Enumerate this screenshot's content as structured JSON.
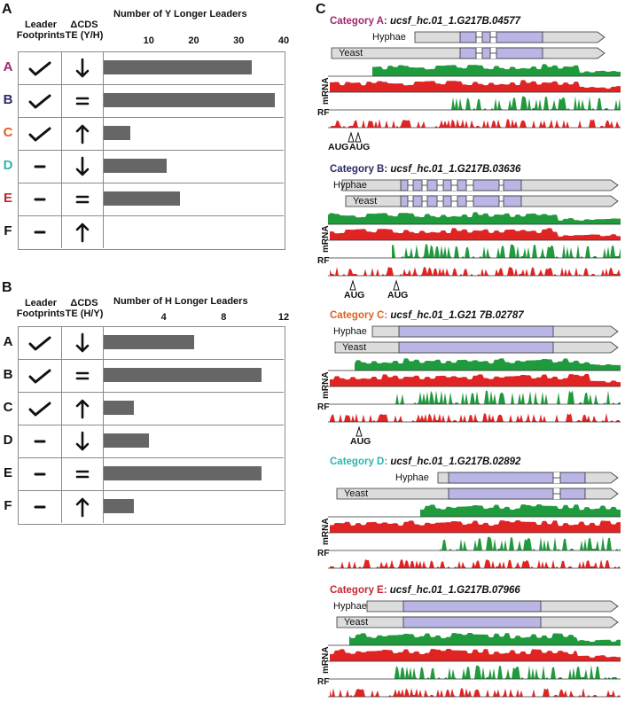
{
  "panels": {
    "A": {
      "letter": "A",
      "col_leader": "Leader\nFootprints",
      "col_te": "ΔCDS\nTE (Y/H)",
      "axis_title": "Number of Y Longer Leaders",
      "ticks": [
        "10",
        "20",
        "30",
        "40"
      ],
      "tick_values": [
        10,
        20,
        30,
        40
      ],
      "max": 40,
      "rows": [
        {
          "label": "A",
          "color": "#a0266f",
          "footprint": "check",
          "te": "down",
          "value": 33
        },
        {
          "label": "B",
          "color": "#2a2a66",
          "footprint": "check",
          "te": "equal",
          "value": 38
        },
        {
          "label": "C",
          "color": "#e0601e",
          "footprint": "check",
          "te": "up",
          "value": 6
        },
        {
          "label": "D",
          "color": "#2ab6b0",
          "footprint": "dash",
          "te": "down",
          "value": 14
        },
        {
          "label": "E",
          "color": "#c0282e",
          "footprint": "dash",
          "te": "equal",
          "value": 17
        },
        {
          "label": "F",
          "color": "#111111",
          "footprint": "dash",
          "te": "up",
          "value": 0
        }
      ]
    },
    "B": {
      "letter": "B",
      "col_leader": "Leader\nFootprints",
      "col_te": "ΔCDS\nTE (H/Y)",
      "axis_title": "Number of H Longer Leaders",
      "ticks": [
        "4",
        "8",
        "12"
      ],
      "tick_values": [
        4,
        8,
        12
      ],
      "max": 12,
      "rows": [
        {
          "label": "A",
          "color": "#111111",
          "footprint": "check",
          "te": "down",
          "value": 6
        },
        {
          "label": "B",
          "color": "#111111",
          "footprint": "check",
          "te": "equal",
          "value": 10.5
        },
        {
          "label": "C",
          "color": "#111111",
          "footprint": "check",
          "te": "up",
          "value": 2
        },
        {
          "label": "D",
          "color": "#111111",
          "footprint": "dash",
          "te": "down",
          "value": 3
        },
        {
          "label": "E",
          "color": "#111111",
          "footprint": "dash",
          "te": "equal",
          "value": 10.5
        },
        {
          "label": "F",
          "color": "#111111",
          "footprint": "dash",
          "te": "up",
          "value": 2
        }
      ]
    },
    "C": {
      "letter": "C",
      "categories": [
        {
          "prefix": "Category A:",
          "gene": "ucsf_hc.01_1.G217B.04577",
          "color": "#a0266f",
          "hyphae": "Hyphae",
          "yeast": "Yeast",
          "mrna": "mRNA",
          "rf": "RF",
          "augs": [
            "AUG",
            "AUG"
          ]
        },
        {
          "prefix": "Category B:",
          "gene": "ucsf_hc.01_1.G217B.03636",
          "color": "#2a2a66",
          "hyphae": "Hyphae",
          "yeast": "Yeast",
          "mrna": "mRNA",
          "rf": "RF",
          "augs": [
            "AUG",
            "AUG"
          ]
        },
        {
          "prefix": "Category C:",
          "gene": "ucsf_hc.01_1.G21 7B.02787",
          "color": "#e0601e",
          "hyphae": "Hyphae",
          "yeast": "Yeast",
          "mrna": "mRNA",
          "rf": "RF",
          "augs": [
            "AUG"
          ]
        },
        {
          "prefix": "Category D:",
          "gene": "ucsf_hc.01_1.G217B.02892",
          "color": "#2ab6b0",
          "hyphae": "Hyphae",
          "yeast": "Yeast",
          "mrna": "mRNA",
          "rf": "RF",
          "augs": []
        },
        {
          "prefix": "Category E:",
          "gene": "ucsf_hc.01_1.G217B.07966",
          "color": "#c0282e",
          "hyphae": "Hyphae",
          "yeast": "Yeast",
          "mrna": "mRNA",
          "rf": "RF",
          "augs": []
        }
      ]
    }
  },
  "colors": {
    "green": "#1f9a3c",
    "red": "#e02424",
    "exon": "#b9b6e6",
    "utr": "#dcdcdc",
    "bar": "#666666"
  }
}
